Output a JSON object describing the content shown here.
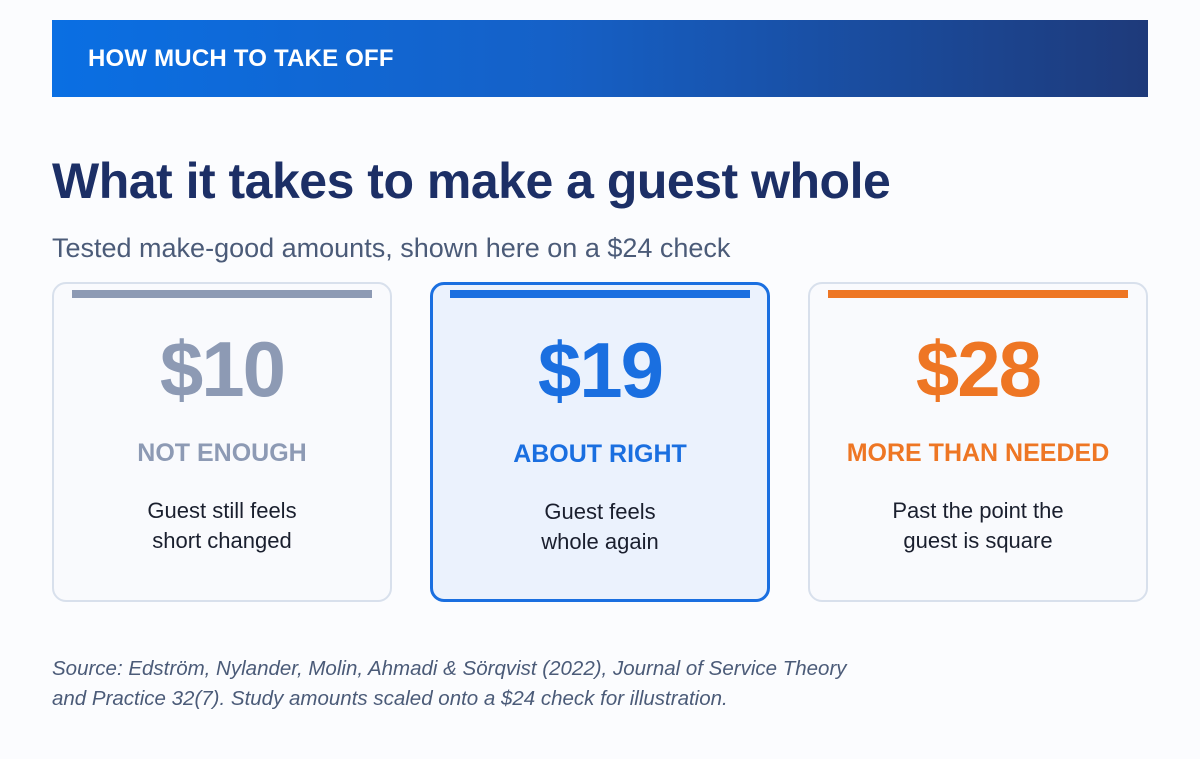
{
  "header": {
    "label": "HOW MUCH TO TAKE OFF"
  },
  "title": "What it takes to make a guest whole",
  "subtitle": "Tested make-good amounts, shown here on a $24 check",
  "cards": [
    {
      "amount": "$10",
      "label": "NOT ENOUGH",
      "description": [
        "Guest still feels",
        "short changed"
      ],
      "color": "#8d9ab4",
      "highlighted": false
    },
    {
      "amount": "$19",
      "label": "ABOUT RIGHT",
      "description": [
        "Guest feels",
        "whole again"
      ],
      "color": "#1a6fe0",
      "highlighted": true
    },
    {
      "amount": "$28",
      "label": "MORE THAN NEEDED",
      "description": [
        "Past the point the",
        "guest is square"
      ],
      "color": "#ee7624",
      "highlighted": false
    }
  ],
  "source": [
    "Source: Edström, Nylander, Molin, Ahmadi & Sörqvist (2022), Journal of Service Theory",
    "and Practice 32(7). Study amounts scaled onto a $24 check for illustration."
  ]
}
